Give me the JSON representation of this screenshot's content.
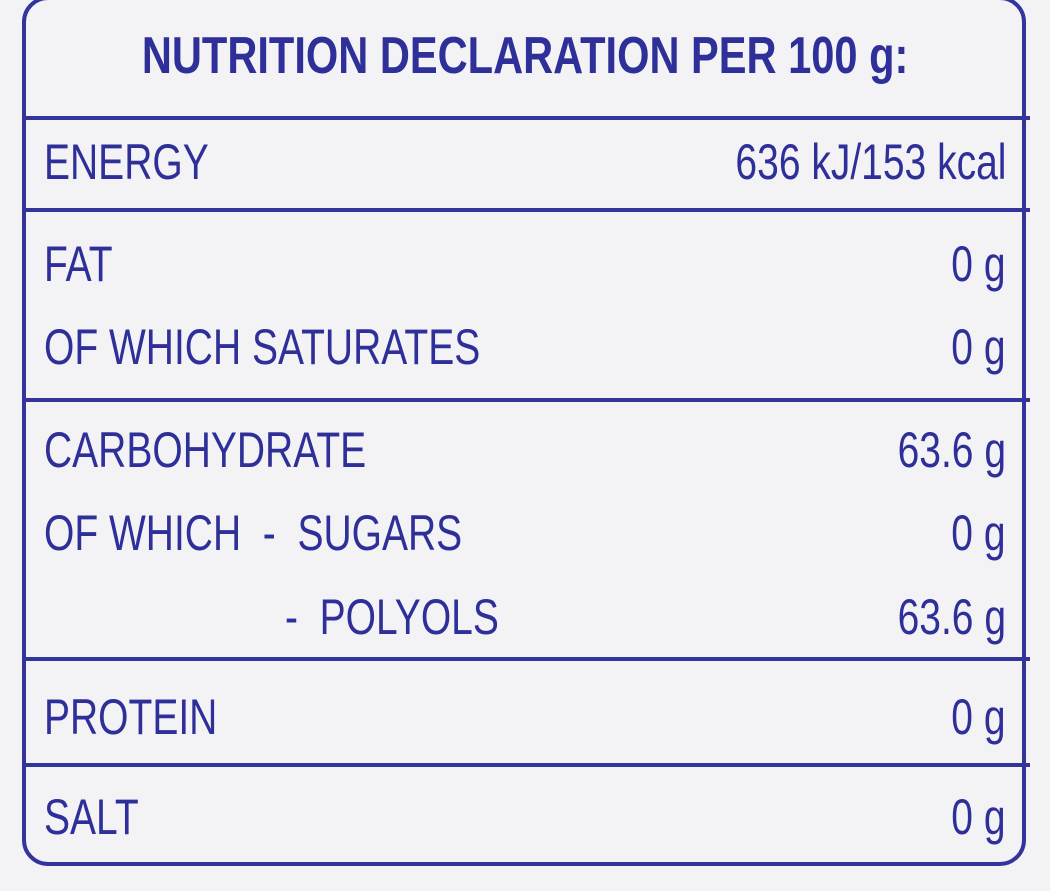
{
  "title": "NUTRITION DECLARATION PER 100 g:",
  "rows": [
    {
      "label": "ENERGY",
      "value": "636 kJ/153 kcal"
    },
    {
      "label": "FAT",
      "value": "0 g"
    },
    {
      "label": "OF WHICH SATURATES",
      "value": "0 g"
    },
    {
      "label": "CARBOHYDRATE",
      "value": "63.6 g"
    },
    {
      "label": "OF WHICH  -  SUGARS",
      "value": "0 g"
    },
    {
      "label": "-  POLYOLS",
      "value": "63.6 g"
    },
    {
      "label": "PROTEIN",
      "value": "0 g"
    },
    {
      "label": "SALT",
      "value": "0 g"
    }
  ],
  "colors": {
    "ink": "#2e2f98",
    "background": "#f3f3f6"
  }
}
